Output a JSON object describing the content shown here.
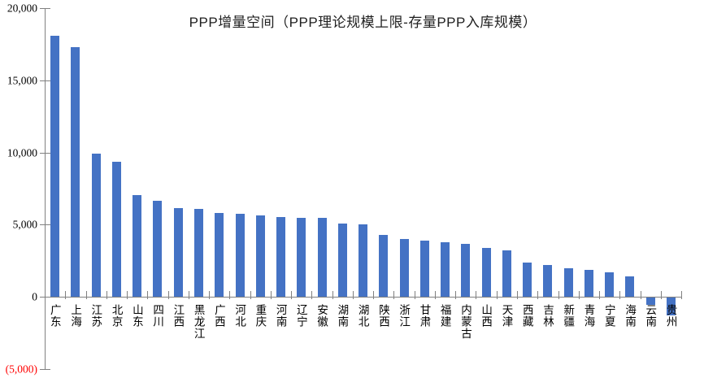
{
  "chart_data": {
    "type": "bar",
    "title": "PPP增量空间（PPP理论规模上限-存量PPP入库规模）",
    "categories": [
      "广东",
      "上海",
      "江苏",
      "北京",
      "山东",
      "四川",
      "江西",
      "黑龙江",
      "广西",
      "河北",
      "重庆",
      "河南",
      "辽宁",
      "安徽",
      "湖南",
      "湖北",
      "陕西",
      "浙江",
      "甘肃",
      "福建",
      "内蒙古",
      "山西",
      "天津",
      "西藏",
      "吉林",
      "新疆",
      "青海",
      "宁夏",
      "海南",
      "云南",
      "贵州"
    ],
    "values": [
      18100,
      17300,
      9900,
      9350,
      7050,
      6650,
      6150,
      6100,
      5800,
      5750,
      5650,
      5550,
      5500,
      5500,
      5100,
      5000,
      4300,
      4000,
      3900,
      3800,
      3700,
      3400,
      3250,
      2400,
      2200,
      2000,
      1900,
      1700,
      1400,
      -500,
      -1250
    ],
    "xlabel": "",
    "ylabel": "",
    "ylim": [
      -5000,
      20000
    ],
    "grid": false,
    "legend": "none",
    "y_ticks": [
      {
        "value": 20000,
        "label": "20,000",
        "negative_style": false
      },
      {
        "value": 15000,
        "label": "15,000",
        "negative_style": false
      },
      {
        "value": 10000,
        "label": "10,000",
        "negative_style": false
      },
      {
        "value": 5000,
        "label": "5,000",
        "negative_style": false
      },
      {
        "value": 0,
        "label": "0",
        "negative_style": false
      },
      {
        "value": -5000,
        "label": "(5,000)",
        "negative_style": true
      }
    ],
    "colors": {
      "bar": "#4472C4",
      "axis": "#808080",
      "tick_label": "#000000",
      "negative_tick_label": "#FF0000",
      "title": "#1f1f1f",
      "background": "#FFFFFF"
    }
  }
}
